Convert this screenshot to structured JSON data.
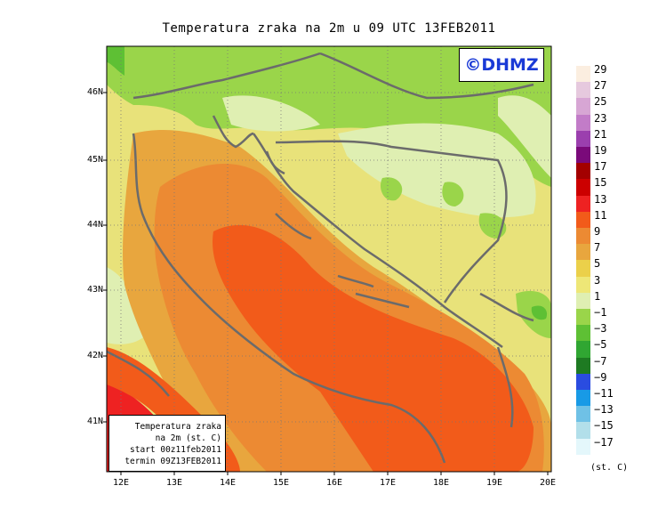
{
  "title": "Temperatura zraka na 2m u 09 UTC 13FEB2011",
  "logo": "©DHMZ",
  "info_box": [
    "Temperatura zraka",
    "na 2m (st. C)",
    "start 00z11feb2011",
    "termin 09Z13FEB2011"
  ],
  "lat_labels": [
    "46N",
    "45N",
    "44N",
    "43N",
    "42N",
    "41N"
  ],
  "lon_labels": [
    "12E",
    "13E",
    "14E",
    "15E",
    "16E",
    "17E",
    "18E",
    "19E",
    "20E"
  ],
  "legend": {
    "unit": "(st. C)",
    "values": [
      "29",
      "27",
      "25",
      "23",
      "21",
      "19",
      "17",
      "15",
      "13",
      "11",
      "9",
      "7",
      "5",
      "3",
      "1",
      "−1",
      "−3",
      "−5",
      "−7",
      "−9",
      "−11",
      "−13",
      "−15",
      "−17"
    ],
    "colors": [
      "#fbeee0",
      "#e6c9de",
      "#d7a6d4",
      "#c27cc8",
      "#9b3fae",
      "#7a0a7a",
      "#a30000",
      "#cc0000",
      "#ee2222",
      "#f25b1a",
      "#ec8a33",
      "#e8a63e",
      "#ebd04a",
      "#eee777",
      "#dfefb2",
      "#9ad54a",
      "#5ec034",
      "#30a632",
      "#1e7a22",
      "#2a4ce0",
      "#189ae6",
      "#6fc1e6",
      "#b2dfea",
      "#e4f7fb"
    ]
  }
}
